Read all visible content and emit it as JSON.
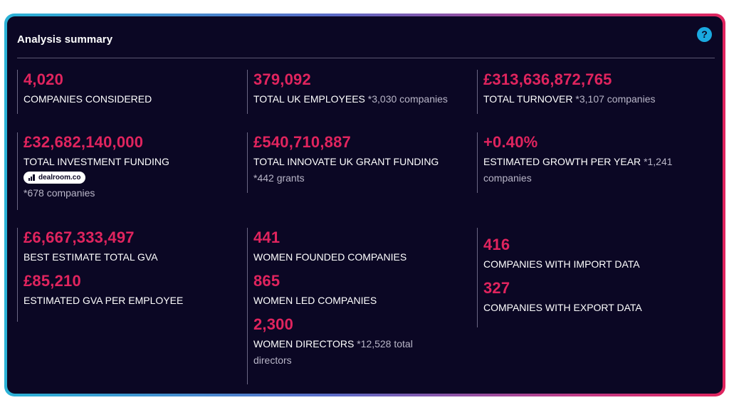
{
  "panel": {
    "title": "Analysis summary",
    "help_label": "?"
  },
  "stats": {
    "companies": {
      "value": "4,020",
      "label": "COMPANIES CONSIDERED"
    },
    "employees": {
      "value": "379,092",
      "label": "TOTAL UK EMPLOYEES",
      "note": "*3,030 companies"
    },
    "turnover": {
      "value": "£313,636,872,765",
      "label": "TOTAL TURNOVER",
      "note": "*3,107 companies"
    },
    "investment": {
      "value": "£32,682,140,000",
      "label": "TOTAL INVESTMENT FUNDING",
      "badge": "dealroom.co",
      "note": "*678 companies"
    },
    "grant": {
      "value": "£540,710,887",
      "label": "TOTAL INNOVATE UK GRANT FUNDING",
      "note": "*442 grants"
    },
    "growth": {
      "value": "+0.40%",
      "label": "ESTIMATED GROWTH PER YEAR",
      "note": "*1,241 companies"
    },
    "gva_total": {
      "value": "£6,667,333,497",
      "label": "BEST ESTIMATE TOTAL GVA"
    },
    "gva_employee": {
      "value": "£85,210",
      "label": "ESTIMATED GVA PER EMPLOYEE"
    },
    "women_founded": {
      "value": "441",
      "label": "WOMEN FOUNDED COMPANIES"
    },
    "women_led": {
      "value": "865",
      "label": "WOMEN LED COMPANIES"
    },
    "women_directors": {
      "value": "2,300",
      "label": "WOMEN DIRECTORS",
      "note": "*12,528 total directors"
    },
    "import_data": {
      "value": "416",
      "label": "COMPANIES WITH IMPORT DATA"
    },
    "export_data": {
      "value": "327",
      "label": "COMPANIES WITH EXPORT DATA"
    }
  },
  "colors": {
    "background": "#0b0724",
    "accent": "#e0245e",
    "help": "#1aa9e0"
  }
}
